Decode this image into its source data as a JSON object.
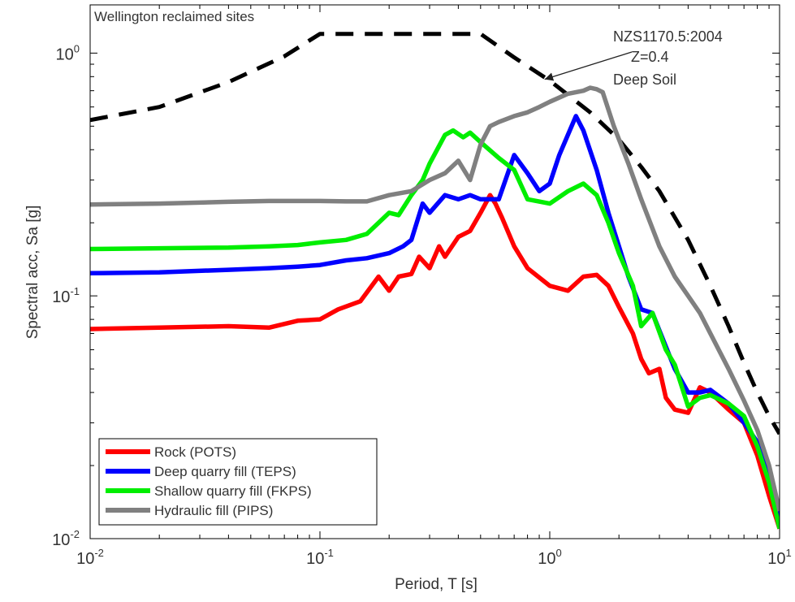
{
  "chart_data": {
    "type": "line",
    "title": "Wellington reclaimed sites",
    "xlabel": "Period, T [s]",
    "ylabel": "Spectral acc, Sa [g]",
    "xscale": "log",
    "yscale": "log",
    "xlim": [
      0.01,
      10
    ],
    "ylim": [
      0.01,
      1.58
    ],
    "grid": false,
    "legend_position": "bottom-left",
    "xticks": [
      {
        "value": 0.01,
        "base": "10",
        "exp": "-2"
      },
      {
        "value": 0.1,
        "base": "10",
        "exp": "-1"
      },
      {
        "value": 1,
        "base": "10",
        "exp": "0"
      },
      {
        "value": 10,
        "base": "10",
        "exp": "1"
      }
    ],
    "yticks": [
      {
        "value": 0.01,
        "base": "10",
        "exp": "-2"
      },
      {
        "value": 0.1,
        "base": "10",
        "exp": "-1"
      },
      {
        "value": 1,
        "base": "10",
        "exp": "0"
      }
    ],
    "annotation": {
      "lines": [
        "NZS1170.5:2004",
        "Z=0.4",
        "Deep Soil"
      ],
      "arrow_to": [
        0.95,
        0.78
      ]
    },
    "series": [
      {
        "name": "NZS1170.5:2004",
        "color": "#000000",
        "dashed": true,
        "in_legend": false,
        "points": [
          [
            0.01,
            0.53
          ],
          [
            0.02,
            0.6
          ],
          [
            0.04,
            0.76
          ],
          [
            0.07,
            0.97
          ],
          [
            0.1,
            1.2
          ],
          [
            0.2,
            1.2
          ],
          [
            0.5,
            1.2
          ],
          [
            0.7,
            0.96
          ],
          [
            1.0,
            0.77
          ],
          [
            1.5,
            0.57
          ],
          [
            2.0,
            0.44
          ],
          [
            2.5,
            0.34
          ],
          [
            3.0,
            0.27
          ],
          [
            4.0,
            0.17
          ],
          [
            5.0,
            0.11
          ],
          [
            6.0,
            0.075
          ],
          [
            7.0,
            0.053
          ],
          [
            8.0,
            0.04
          ],
          [
            9.0,
            0.032
          ],
          [
            10.0,
            0.027
          ]
        ]
      },
      {
        "name": "Rock (POTS)",
        "color": "#ff0000",
        "dashed": false,
        "in_legend": true,
        "points": [
          [
            0.01,
            0.073
          ],
          [
            0.02,
            0.074
          ],
          [
            0.04,
            0.075
          ],
          [
            0.06,
            0.074
          ],
          [
            0.08,
            0.079
          ],
          [
            0.1,
            0.08
          ],
          [
            0.12,
            0.088
          ],
          [
            0.15,
            0.095
          ],
          [
            0.18,
            0.12
          ],
          [
            0.2,
            0.105
          ],
          [
            0.22,
            0.12
          ],
          [
            0.25,
            0.123
          ],
          [
            0.27,
            0.145
          ],
          [
            0.3,
            0.13
          ],
          [
            0.33,
            0.16
          ],
          [
            0.35,
            0.145
          ],
          [
            0.4,
            0.175
          ],
          [
            0.45,
            0.185
          ],
          [
            0.5,
            0.22
          ],
          [
            0.55,
            0.26
          ],
          [
            0.58,
            0.24
          ],
          [
            0.62,
            0.21
          ],
          [
            0.7,
            0.16
          ],
          [
            0.8,
            0.13
          ],
          [
            1.0,
            0.11
          ],
          [
            1.2,
            0.105
          ],
          [
            1.4,
            0.12
          ],
          [
            1.6,
            0.122
          ],
          [
            1.8,
            0.11
          ],
          [
            2.0,
            0.09
          ],
          [
            2.3,
            0.07
          ],
          [
            2.5,
            0.055
          ],
          [
            2.7,
            0.048
          ],
          [
            3.0,
            0.05
          ],
          [
            3.2,
            0.038
          ],
          [
            3.5,
            0.034
          ],
          [
            4.0,
            0.033
          ],
          [
            4.5,
            0.042
          ],
          [
            5.0,
            0.04
          ],
          [
            6.0,
            0.034
          ],
          [
            7.0,
            0.03
          ],
          [
            8.0,
            0.022
          ],
          [
            9.0,
            0.015
          ],
          [
            10.0,
            0.011
          ]
        ]
      },
      {
        "name": "Deep quarry fill (TEPS)",
        "color": "#0000ff",
        "dashed": false,
        "in_legend": true,
        "points": [
          [
            0.01,
            0.124
          ],
          [
            0.02,
            0.125
          ],
          [
            0.04,
            0.128
          ],
          [
            0.06,
            0.13
          ],
          [
            0.08,
            0.132
          ],
          [
            0.1,
            0.134
          ],
          [
            0.13,
            0.14
          ],
          [
            0.16,
            0.143
          ],
          [
            0.2,
            0.15
          ],
          [
            0.23,
            0.16
          ],
          [
            0.25,
            0.17
          ],
          [
            0.28,
            0.24
          ],
          [
            0.3,
            0.22
          ],
          [
            0.35,
            0.26
          ],
          [
            0.4,
            0.25
          ],
          [
            0.45,
            0.26
          ],
          [
            0.5,
            0.25
          ],
          [
            0.6,
            0.25
          ],
          [
            0.7,
            0.38
          ],
          [
            0.8,
            0.32
          ],
          [
            0.9,
            0.27
          ],
          [
            1.0,
            0.29
          ],
          [
            1.1,
            0.38
          ],
          [
            1.3,
            0.55
          ],
          [
            1.4,
            0.48
          ],
          [
            1.6,
            0.33
          ],
          [
            1.8,
            0.22
          ],
          [
            2.0,
            0.16
          ],
          [
            2.2,
            0.12
          ],
          [
            2.5,
            0.088
          ],
          [
            2.8,
            0.085
          ],
          [
            3.0,
            0.072
          ],
          [
            3.5,
            0.05
          ],
          [
            4.0,
            0.04
          ],
          [
            4.5,
            0.04
          ],
          [
            5.0,
            0.041
          ],
          [
            6.0,
            0.036
          ],
          [
            7.0,
            0.03
          ],
          [
            8.0,
            0.025
          ],
          [
            9.0,
            0.018
          ],
          [
            10.0,
            0.012
          ]
        ]
      },
      {
        "name": "Shallow quarry fill (FKPS)",
        "color": "#00ee00",
        "dashed": false,
        "in_legend": true,
        "points": [
          [
            0.01,
            0.156
          ],
          [
            0.02,
            0.157
          ],
          [
            0.04,
            0.158
          ],
          [
            0.06,
            0.16
          ],
          [
            0.08,
            0.162
          ],
          [
            0.1,
            0.166
          ],
          [
            0.13,
            0.17
          ],
          [
            0.16,
            0.18
          ],
          [
            0.18,
            0.2
          ],
          [
            0.2,
            0.22
          ],
          [
            0.22,
            0.215
          ],
          [
            0.25,
            0.26
          ],
          [
            0.28,
            0.3
          ],
          [
            0.3,
            0.35
          ],
          [
            0.35,
            0.46
          ],
          [
            0.38,
            0.48
          ],
          [
            0.42,
            0.45
          ],
          [
            0.45,
            0.47
          ],
          [
            0.5,
            0.43
          ],
          [
            0.6,
            0.37
          ],
          [
            0.7,
            0.33
          ],
          [
            0.8,
            0.25
          ],
          [
            1.0,
            0.24
          ],
          [
            1.2,
            0.27
          ],
          [
            1.4,
            0.29
          ],
          [
            1.6,
            0.26
          ],
          [
            1.8,
            0.2
          ],
          [
            2.0,
            0.15
          ],
          [
            2.3,
            0.11
          ],
          [
            2.5,
            0.075
          ],
          [
            2.8,
            0.085
          ],
          [
            3.2,
            0.06
          ],
          [
            3.5,
            0.052
          ],
          [
            4.0,
            0.035
          ],
          [
            4.5,
            0.038
          ],
          [
            5.0,
            0.039
          ],
          [
            6.0,
            0.036
          ],
          [
            7.0,
            0.032
          ],
          [
            8.0,
            0.024
          ],
          [
            9.0,
            0.017
          ],
          [
            10.0,
            0.011
          ]
        ]
      },
      {
        "name": "Hydraulic fill (PIPS)",
        "color": "#808080",
        "dashed": false,
        "in_legend": true,
        "points": [
          [
            0.01,
            0.238
          ],
          [
            0.02,
            0.24
          ],
          [
            0.04,
            0.244
          ],
          [
            0.06,
            0.246
          ],
          [
            0.08,
            0.246
          ],
          [
            0.1,
            0.246
          ],
          [
            0.13,
            0.245
          ],
          [
            0.16,
            0.245
          ],
          [
            0.2,
            0.26
          ],
          [
            0.25,
            0.27
          ],
          [
            0.3,
            0.3
          ],
          [
            0.35,
            0.32
          ],
          [
            0.4,
            0.36
          ],
          [
            0.45,
            0.3
          ],
          [
            0.5,
            0.42
          ],
          [
            0.55,
            0.5
          ],
          [
            0.6,
            0.52
          ],
          [
            0.7,
            0.55
          ],
          [
            0.8,
            0.57
          ],
          [
            0.9,
            0.6
          ],
          [
            1.0,
            0.63
          ],
          [
            1.2,
            0.68
          ],
          [
            1.4,
            0.7
          ],
          [
            1.5,
            0.72
          ],
          [
            1.6,
            0.71
          ],
          [
            1.7,
            0.69
          ],
          [
            1.9,
            0.5
          ],
          [
            2.2,
            0.35
          ],
          [
            2.5,
            0.25
          ],
          [
            3.0,
            0.16
          ],
          [
            3.5,
            0.12
          ],
          [
            4.0,
            0.1
          ],
          [
            4.5,
            0.085
          ],
          [
            5.0,
            0.07
          ],
          [
            6.0,
            0.05
          ],
          [
            7.0,
            0.037
          ],
          [
            8.0,
            0.028
          ],
          [
            9.0,
            0.02
          ],
          [
            10.0,
            0.013
          ]
        ]
      }
    ]
  }
}
